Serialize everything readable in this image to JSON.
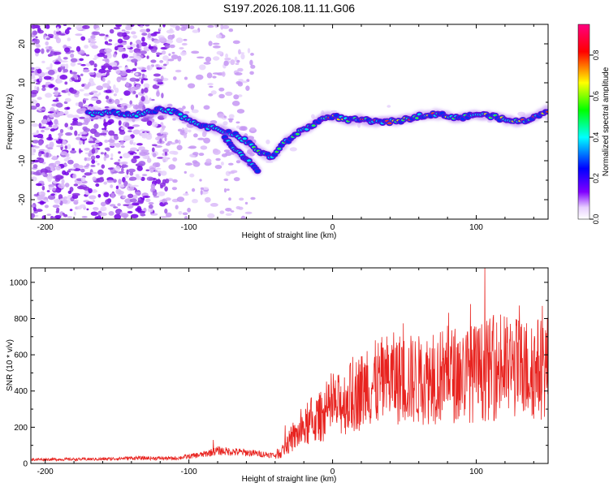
{
  "figure_title": "S197.2026.108.11.11.G06",
  "chart_data": [
    {
      "type": "heatmap",
      "title": "S197.2026.108.11.11.G06",
      "xlabel": "Height of straight line (km)",
      "ylabel": "Frequency (Hz)",
      "xlim": [
        -210,
        150
      ],
      "ylim": [
        -25,
        25
      ],
      "xticks": [
        -200,
        -100,
        0,
        100
      ],
      "yticks": [
        -20,
        -10,
        0,
        10,
        20
      ],
      "colorbar": {
        "label": "Normalized spectral amplitude",
        "range": [
          0,
          0.95
        ],
        "ticks": [
          0.0,
          0.2,
          0.4,
          0.6,
          0.8
        ],
        "colormap": [
          "#ffffff",
          "#8000ff",
          "#0000ff",
          "#00ffff",
          "#00ff00",
          "#ffff00",
          "#ff0000",
          "#ff0080"
        ]
      },
      "ridge": {
        "x": [
          -170,
          -155,
          -140,
          -120,
          -110,
          -100,
          -90,
          -80,
          -70,
          -60,
          -50,
          -42,
          -35,
          -25,
          -15,
          -5,
          0,
          10,
          20,
          30,
          40,
          50,
          60,
          70,
          80,
          90,
          100,
          110,
          120,
          130,
          140,
          150
        ],
        "y": [
          2,
          2.5,
          1.5,
          3,
          2.5,
          0.5,
          -1,
          -2,
          -3,
          -5,
          -8,
          -9,
          -6,
          -3,
          -1,
          1,
          1.5,
          0.5,
          0.5,
          0,
          0,
          0.5,
          1.5,
          2,
          1.5,
          1,
          2,
          1.5,
          0.5,
          0,
          1,
          3
        ]
      },
      "branch": {
        "x": [
          -75,
          -68,
          -62,
          -56,
          -52
        ],
        "y": [
          -4,
          -7,
          -9,
          -11,
          -13
        ]
      }
    },
    {
      "type": "line",
      "xlabel": "Height of straight line (km)",
      "ylabel": "SNR (10 * v/v)",
      "xlim": [
        -210,
        150
      ],
      "ylim": [
        0,
        1080
      ],
      "xticks": [
        -200,
        -100,
        0,
        100
      ],
      "yticks": [
        0,
        200,
        400,
        600,
        800,
        1000
      ],
      "line_color": "#e8231f",
      "envelope_x": [
        -210,
        -160,
        -140,
        -110,
        -90,
        -80,
        -60,
        -40,
        -35,
        -30,
        -20,
        -10,
        0,
        10,
        20,
        30,
        40,
        60,
        80,
        100,
        110,
        120,
        140,
        150
      ],
      "envelope_y": [
        22,
        24,
        30,
        28,
        50,
        70,
        60,
        45,
        70,
        120,
        190,
        250,
        300,
        350,
        400,
        440,
        470,
        460,
        490,
        500,
        520,
        530,
        520,
        540
      ],
      "peaks": [
        {
          "x": -83,
          "y": 130
        },
        {
          "x": -33,
          "y": 210
        },
        {
          "x": -15,
          "y": 360
        },
        {
          "x": 1,
          "y": 400
        },
        {
          "x": 18,
          "y": 480
        },
        {
          "x": 24,
          "y": 620
        },
        {
          "x": 48,
          "y": 640
        },
        {
          "x": 70,
          "y": 710
        },
        {
          "x": 80,
          "y": 760
        },
        {
          "x": 96,
          "y": 880
        },
        {
          "x": 106,
          "y": 1080
        },
        {
          "x": 112,
          "y": 820
        },
        {
          "x": 128,
          "y": 760
        },
        {
          "x": 146,
          "y": 870
        }
      ]
    }
  ]
}
